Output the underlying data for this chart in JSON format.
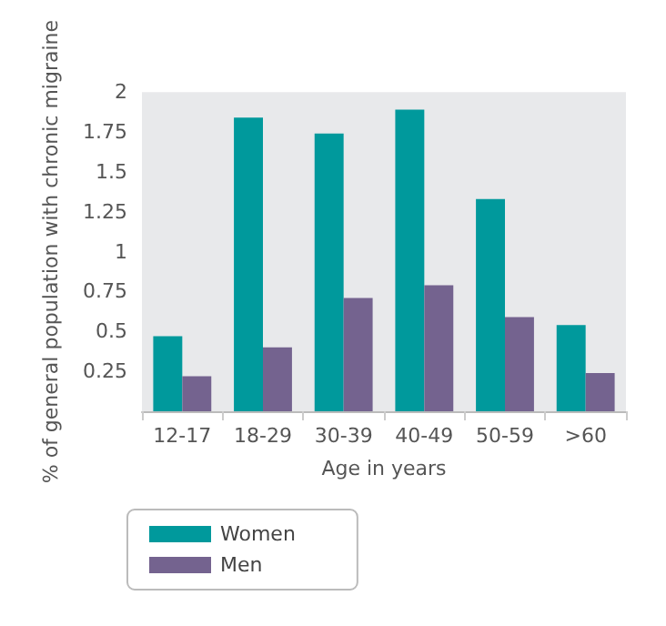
{
  "chart_data": {
    "type": "bar",
    "xlabel": "Age in years",
    "ylabel": "% of general population with chronic migraine",
    "categories": [
      "12-17",
      "18-29",
      "30-39",
      "40-49",
      "50-59",
      ">60"
    ],
    "series": [
      {
        "name": "Women",
        "color": "#00999c",
        "values": [
          0.47,
          1.84,
          1.74,
          1.89,
          1.33,
          0.54
        ]
      },
      {
        "name": "Men",
        "color": "#74638f",
        "values": [
          0.22,
          0.4,
          0.71,
          0.79,
          0.59,
          0.24
        ]
      }
    ],
    "ylim": [
      0,
      2
    ],
    "yticks": [
      {
        "value": 0,
        "label": null
      },
      0.25,
      0.5,
      0.75,
      1,
      1.25,
      1.5,
      1.75,
      2
    ],
    "grid": false,
    "legend": "bottom left"
  }
}
